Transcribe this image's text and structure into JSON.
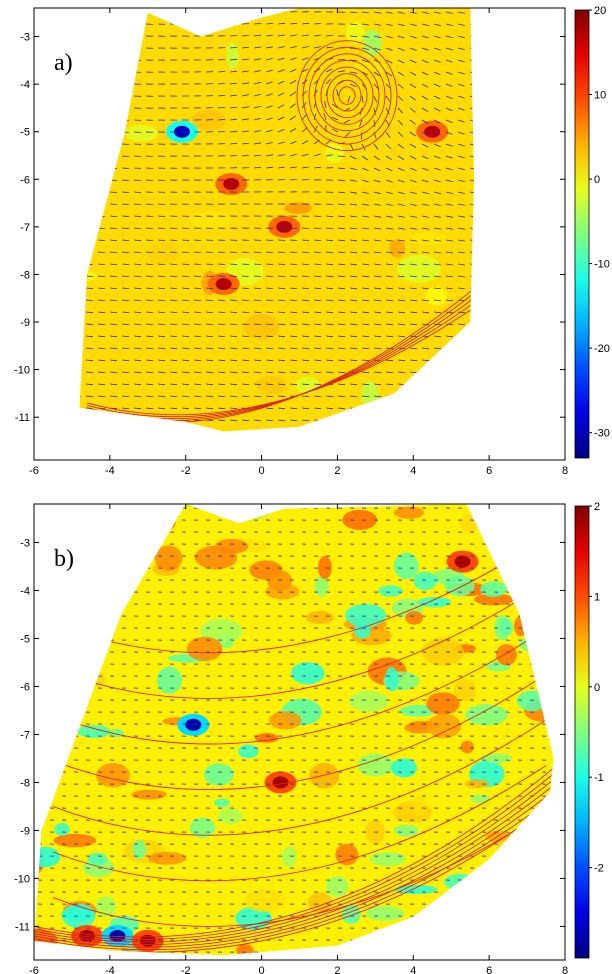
{
  "chart_data": [
    {
      "type": "heatmap",
      "panel_label": "a)",
      "xlim": [
        -6,
        8
      ],
      "ylim": [
        -11.9,
        -2.4
      ],
      "x_ticks": [
        -6,
        -4,
        -2,
        0,
        2,
        4,
        6,
        8
      ],
      "y_ticks": [
        -3,
        -4,
        -5,
        -6,
        -7,
        -8,
        -9,
        -10,
        -11
      ],
      "colorbar": {
        "min": -33,
        "max": 20,
        "ticks": [
          20,
          10,
          0,
          -10,
          -20,
          -30
        ]
      },
      "grid": false,
      "notable_features": [
        {
          "kind": "vortex",
          "x": 2.2,
          "y": -4.2
        },
        {
          "kind": "negative_spot",
          "x": -2.1,
          "y": -5.0
        },
        {
          "kind": "positive_spot",
          "x": -0.8,
          "y": -6.1
        },
        {
          "kind": "positive_spot",
          "x": 0.6,
          "y": -7.0
        },
        {
          "kind": "positive_spot",
          "x": -1.0,
          "y": -8.2
        },
        {
          "kind": "positive_spot",
          "x": 4.5,
          "y": -5.0
        }
      ]
    },
    {
      "type": "heatmap",
      "panel_label": "b)",
      "xlim": [
        -6,
        8
      ],
      "ylim": [
        -11.7,
        -2.2
      ],
      "x_ticks": [
        -6,
        -4,
        -2,
        0,
        2,
        4,
        6,
        8
      ],
      "y_ticks": [
        -3,
        -4,
        -5,
        -6,
        -7,
        -8,
        -9,
        -10,
        -11
      ],
      "colorbar": {
        "min": -3,
        "max": 2,
        "ticks": [
          2,
          1,
          0,
          -1,
          -2
        ]
      },
      "grid": false,
      "notable_features": [
        {
          "kind": "positive_spot",
          "x": -4.6,
          "y": -11.2
        },
        {
          "kind": "negative_spot",
          "x": -3.8,
          "y": -11.2
        },
        {
          "kind": "positive_spot",
          "x": -3.0,
          "y": -11.3
        },
        {
          "kind": "positive_spot",
          "x": 5.3,
          "y": -3.4
        },
        {
          "kind": "negative_spot",
          "x": -1.8,
          "y": -6.8
        },
        {
          "kind": "positive_spot",
          "x": 0.5,
          "y": -8.0
        }
      ]
    }
  ]
}
